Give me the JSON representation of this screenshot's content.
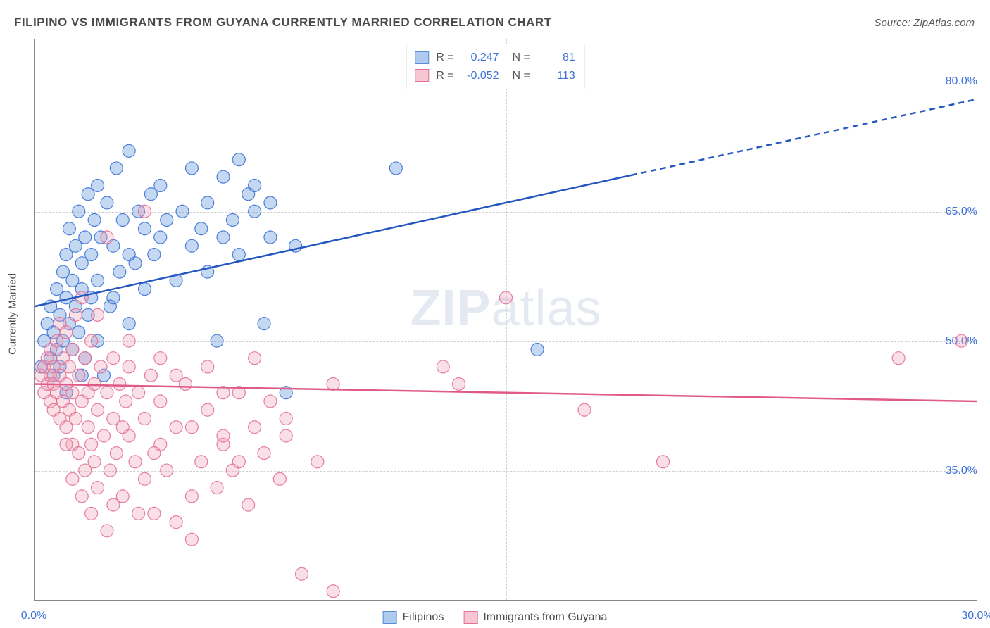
{
  "title": "FILIPINO VS IMMIGRANTS FROM GUYANA CURRENTLY MARRIED CORRELATION CHART",
  "source": "Source: ZipAtlas.com",
  "ylabel": "Currently Married",
  "watermark_bold": "ZIP",
  "watermark_rest": "atlas",
  "chart": {
    "type": "scatter-with-trend",
    "background_color": "#ffffff",
    "grid_color": "#d0d0d0",
    "axis_color": "#888888",
    "xlim": [
      0,
      30
    ],
    "ylim": [
      20,
      85
    ],
    "xticks": [
      {
        "v": 0.0,
        "label": "0.0%"
      },
      {
        "v": 30.0,
        "label": "30.0%"
      }
    ],
    "yticks": [
      {
        "v": 35.0,
        "label": "35.0%"
      },
      {
        "v": 50.0,
        "label": "50.0%"
      },
      {
        "v": 65.0,
        "label": "65.0%"
      },
      {
        "v": 80.0,
        "label": "80.0%"
      }
    ],
    "vgrid_at": [
      15.0
    ],
    "marker_radius": 9,
    "marker_fill_opacity": 0.35,
    "marker_stroke_opacity": 0.9,
    "trend_line_width": 2.5,
    "series": [
      {
        "name": "Filipinos",
        "color": "#5a8fd8",
        "stroke": "#3d72d8",
        "trend_color": "#2457bf",
        "trend": {
          "y0": 54.0,
          "y1": 78.0,
          "solid_until_x": 19.0
        },
        "R": "0.247",
        "N": "81",
        "points": [
          [
            0.2,
            47
          ],
          [
            0.3,
            50
          ],
          [
            0.4,
            52
          ],
          [
            0.5,
            48
          ],
          [
            0.5,
            54
          ],
          [
            0.6,
            46
          ],
          [
            0.6,
            51
          ],
          [
            0.7,
            49
          ],
          [
            0.7,
            56
          ],
          [
            0.8,
            53
          ],
          [
            0.8,
            47
          ],
          [
            0.9,
            58
          ],
          [
            0.9,
            50
          ],
          [
            1.0,
            55
          ],
          [
            1.0,
            60
          ],
          [
            1.1,
            52
          ],
          [
            1.1,
            63
          ],
          [
            1.2,
            49
          ],
          [
            1.2,
            57
          ],
          [
            1.3,
            54
          ],
          [
            1.3,
            61
          ],
          [
            1.4,
            51
          ],
          [
            1.4,
            65
          ],
          [
            1.5,
            56
          ],
          [
            1.5,
            59
          ],
          [
            1.6,
            48
          ],
          [
            1.6,
            62
          ],
          [
            1.7,
            53
          ],
          [
            1.7,
            67
          ],
          [
            1.8,
            55
          ],
          [
            1.8,
            60
          ],
          [
            1.9,
            64
          ],
          [
            2.0,
            57
          ],
          [
            2.0,
            50
          ],
          [
            2.1,
            62
          ],
          [
            2.2,
            46
          ],
          [
            2.3,
            66
          ],
          [
            2.4,
            54
          ],
          [
            2.5,
            61
          ],
          [
            2.6,
            70
          ],
          [
            2.7,
            58
          ],
          [
            2.8,
            64
          ],
          [
            3.0,
            52
          ],
          [
            3.0,
            72
          ],
          [
            3.2,
            59
          ],
          [
            3.3,
            65
          ],
          [
            3.5,
            63
          ],
          [
            3.5,
            56
          ],
          [
            3.7,
            67
          ],
          [
            3.8,
            60
          ],
          [
            4.0,
            62
          ],
          [
            4.2,
            64
          ],
          [
            4.5,
            57
          ],
          [
            4.7,
            65
          ],
          [
            5.0,
            61
          ],
          [
            5.0,
            70
          ],
          [
            5.3,
            63
          ],
          [
            5.5,
            66
          ],
          [
            5.8,
            50
          ],
          [
            6.0,
            62
          ],
          [
            6.0,
            69
          ],
          [
            6.3,
            64
          ],
          [
            6.5,
            71
          ],
          [
            6.5,
            60
          ],
          [
            7.0,
            65
          ],
          [
            7.0,
            68
          ],
          [
            7.3,
            52
          ],
          [
            7.5,
            66
          ],
          [
            7.5,
            62
          ],
          [
            8.0,
            44
          ],
          [
            8.3,
            61
          ],
          [
            11.5,
            70
          ],
          [
            16.0,
            49
          ],
          [
            1.0,
            44
          ],
          [
            2.0,
            68
          ],
          [
            2.5,
            55
          ],
          [
            4.0,
            68
          ],
          [
            1.5,
            46
          ],
          [
            3.0,
            60
          ],
          [
            5.5,
            58
          ],
          [
            6.8,
            67
          ]
        ]
      },
      {
        "name": "Immigrants from Guyana",
        "color": "#eda3b8",
        "stroke": "#e47096",
        "trend_color": "#e05a86",
        "trend": {
          "y0": 45.0,
          "y1": 43.0,
          "solid_until_x": 30.0
        },
        "R": "-0.052",
        "N": "113",
        "points": [
          [
            0.2,
            46
          ],
          [
            0.3,
            44
          ],
          [
            0.3,
            47
          ],
          [
            0.4,
            45
          ],
          [
            0.4,
            48
          ],
          [
            0.5,
            43
          ],
          [
            0.5,
            46
          ],
          [
            0.5,
            49
          ],
          [
            0.6,
            42
          ],
          [
            0.6,
            45
          ],
          [
            0.6,
            47
          ],
          [
            0.7,
            44
          ],
          [
            0.7,
            50
          ],
          [
            0.8,
            41
          ],
          [
            0.8,
            46
          ],
          [
            0.8,
            52
          ],
          [
            0.9,
            43
          ],
          [
            0.9,
            48
          ],
          [
            1.0,
            40
          ],
          [
            1.0,
            45
          ],
          [
            1.0,
            51
          ],
          [
            1.1,
            42
          ],
          [
            1.1,
            47
          ],
          [
            1.2,
            38
          ],
          [
            1.2,
            44
          ],
          [
            1.2,
            49
          ],
          [
            1.3,
            41
          ],
          [
            1.3,
            53
          ],
          [
            1.4,
            37
          ],
          [
            1.4,
            46
          ],
          [
            1.5,
            43
          ],
          [
            1.5,
            55
          ],
          [
            1.6,
            35
          ],
          [
            1.6,
            48
          ],
          [
            1.7,
            40
          ],
          [
            1.7,
            44
          ],
          [
            1.8,
            38
          ],
          [
            1.8,
            50
          ],
          [
            1.9,
            36
          ],
          [
            1.9,
            45
          ],
          [
            2.0,
            42
          ],
          [
            2.0,
            33
          ],
          [
            2.1,
            47
          ],
          [
            2.2,
            39
          ],
          [
            2.3,
            44
          ],
          [
            2.3,
            62
          ],
          [
            2.4,
            35
          ],
          [
            2.5,
            41
          ],
          [
            2.5,
            48
          ],
          [
            2.6,
            37
          ],
          [
            2.7,
            45
          ],
          [
            2.8,
            32
          ],
          [
            2.9,
            43
          ],
          [
            3.0,
            39
          ],
          [
            3.0,
            50
          ],
          [
            3.2,
            36
          ],
          [
            3.3,
            44
          ],
          [
            3.5,
            41
          ],
          [
            3.5,
            34
          ],
          [
            3.7,
            46
          ],
          [
            3.8,
            30
          ],
          [
            4.0,
            38
          ],
          [
            4.0,
            43
          ],
          [
            4.2,
            35
          ],
          [
            4.5,
            40
          ],
          [
            4.5,
            29
          ],
          [
            4.8,
            45
          ],
          [
            5.0,
            32
          ],
          [
            5.0,
            27
          ],
          [
            5.3,
            36
          ],
          [
            5.5,
            42
          ],
          [
            5.8,
            33
          ],
          [
            6.0,
            38
          ],
          [
            6.0,
            39
          ],
          [
            6.3,
            35
          ],
          [
            6.5,
            44
          ],
          [
            6.8,
            31
          ],
          [
            7.0,
            40
          ],
          [
            7.0,
            48
          ],
          [
            7.3,
            37
          ],
          [
            7.5,
            43
          ],
          [
            7.8,
            34
          ],
          [
            8.0,
            41
          ],
          [
            8.0,
            39
          ],
          [
            8.5,
            23
          ],
          [
            9.0,
            36
          ],
          [
            9.5,
            45
          ],
          [
            9.5,
            21
          ],
          [
            13.0,
            47
          ],
          [
            13.5,
            45
          ],
          [
            15.0,
            55
          ],
          [
            17.5,
            42
          ],
          [
            20.0,
            36
          ],
          [
            27.5,
            48
          ],
          [
            29.5,
            50
          ],
          [
            1.5,
            32
          ],
          [
            2.0,
            53
          ],
          [
            2.5,
            31
          ],
          [
            3.0,
            47
          ],
          [
            3.5,
            65
          ],
          [
            4.0,
            48
          ],
          [
            4.5,
            46
          ],
          [
            5.5,
            47
          ],
          [
            6.0,
            44
          ],
          [
            6.5,
            36
          ],
          [
            1.0,
            38
          ],
          [
            1.2,
            34
          ],
          [
            1.8,
            30
          ],
          [
            2.3,
            28
          ],
          [
            3.3,
            30
          ],
          [
            3.8,
            37
          ],
          [
            5.0,
            40
          ],
          [
            2.8,
            40
          ]
        ]
      }
    ]
  },
  "legend_top": {
    "rows": [
      {
        "swatch_fill": "#aecaf0",
        "swatch_stroke": "#5a8fd8",
        "R": "0.247",
        "N": "81"
      },
      {
        "swatch_fill": "#f6c6d4",
        "swatch_stroke": "#e47096",
        "R": "-0.052",
        "N": "113"
      }
    ]
  },
  "legend_bottom": {
    "items": [
      {
        "swatch_fill": "#aecaf0",
        "swatch_stroke": "#5a8fd8",
        "label": "Filipinos"
      },
      {
        "swatch_fill": "#f6c6d4",
        "swatch_stroke": "#e47096",
        "label": "Immigrants from Guyana"
      }
    ]
  }
}
